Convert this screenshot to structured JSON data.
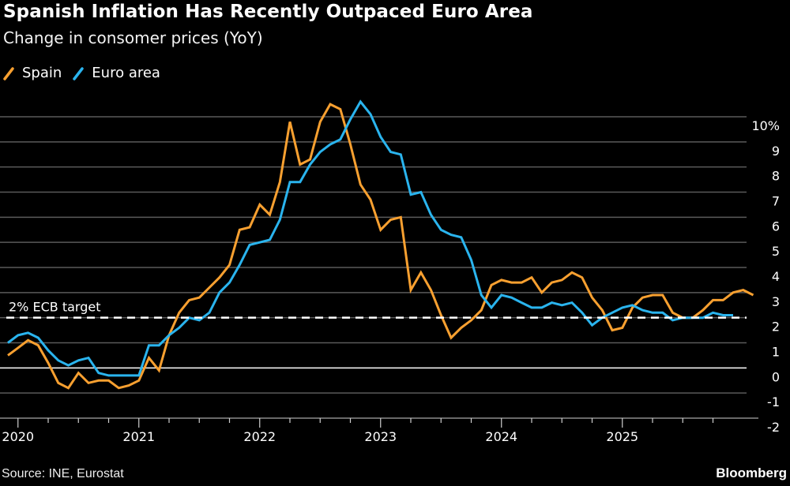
{
  "header": {
    "title": "Spanish Inflation Has Recently Outpaced Euro Area",
    "subtitle": "Change in consomer prices (YoY)"
  },
  "legend": [
    {
      "label": "Spain",
      "color": "#f8a030"
    },
    {
      "label": "Euro area",
      "color": "#2ab4ee"
    }
  ],
  "footer": {
    "source": "Source: INE, Eurostat",
    "brand": "Bloomberg"
  },
  "chart_data": {
    "type": "line",
    "title": "Spanish Inflation Has Recently Outpaced Euro Area",
    "subtitle": "Change in consomer prices (YoY)",
    "xlabel": "",
    "ylabel": "",
    "ylim": [
      -2,
      10
    ],
    "y_ticks": [
      "10%",
      "9",
      "8",
      "7",
      "6",
      "5",
      "4",
      "3",
      "2",
      "1",
      "0",
      "-1",
      "-2"
    ],
    "y_tick_values": [
      10,
      9,
      8,
      7,
      6,
      5,
      4,
      3,
      2,
      1,
      0,
      -1,
      -2
    ],
    "x_tick_labels": [
      "2020",
      "2021",
      "2022",
      "2023",
      "2024",
      "2025"
    ],
    "x_start": "2019-12",
    "frequency": "monthly",
    "grid": true,
    "legend_position": "top-left",
    "annotation": {
      "label": "2% ECB target",
      "value": 2
    },
    "series": [
      {
        "name": "Spain",
        "color": "#f8a030",
        "values": [
          0.5,
          0.8,
          1.1,
          0.9,
          0.2,
          -0.6,
          -0.8,
          -0.2,
          -0.6,
          -0.5,
          -0.5,
          -0.8,
          -0.7,
          -0.5,
          0.4,
          -0.1,
          1.3,
          2.2,
          2.7,
          2.8,
          3.2,
          3.6,
          4.1,
          5.5,
          5.6,
          6.5,
          6.1,
          7.4,
          9.8,
          8.1,
          8.3,
          9.8,
          10.5,
          10.3,
          8.9,
          7.3,
          6.7,
          5.5,
          5.9,
          6.0,
          3.1,
          3.8,
          3.1,
          2.1,
          1.2,
          1.6,
          1.9,
          2.3,
          3.3,
          3.5,
          3.4,
          3.4,
          3.6,
          3.0,
          3.4,
          3.5,
          3.8,
          3.6,
          2.8,
          2.3,
          1.5,
          1.6,
          2.4,
          2.8,
          2.9,
          2.9,
          2.2,
          2.0,
          2.0,
          2.3,
          2.7,
          2.7,
          3.0,
          3.1,
          2.9
        ]
      },
      {
        "name": "Euro area",
        "color": "#2ab4ee",
        "values": [
          1.0,
          1.3,
          1.4,
          1.2,
          0.7,
          0.3,
          0.1,
          0.3,
          0.4,
          -0.2,
          -0.3,
          -0.3,
          -0.3,
          -0.3,
          0.9,
          0.9,
          1.3,
          1.6,
          2.0,
          1.9,
          2.2,
          3.0,
          3.4,
          4.1,
          4.9,
          5.0,
          5.1,
          5.9,
          7.4,
          7.4,
          8.1,
          8.6,
          8.9,
          9.1,
          9.9,
          10.6,
          10.1,
          9.2,
          8.6,
          8.5,
          6.9,
          7.0,
          6.1,
          5.5,
          5.3,
          5.2,
          4.3,
          2.9,
          2.4,
          2.9,
          2.8,
          2.6,
          2.4,
          2.4,
          2.6,
          2.5,
          2.6,
          2.2,
          1.7,
          2.0,
          2.2,
          2.4,
          2.5,
          2.3,
          2.2,
          2.2,
          1.9,
          2.0,
          2.0,
          2.0,
          2.2,
          2.1,
          2.1
        ]
      }
    ]
  }
}
